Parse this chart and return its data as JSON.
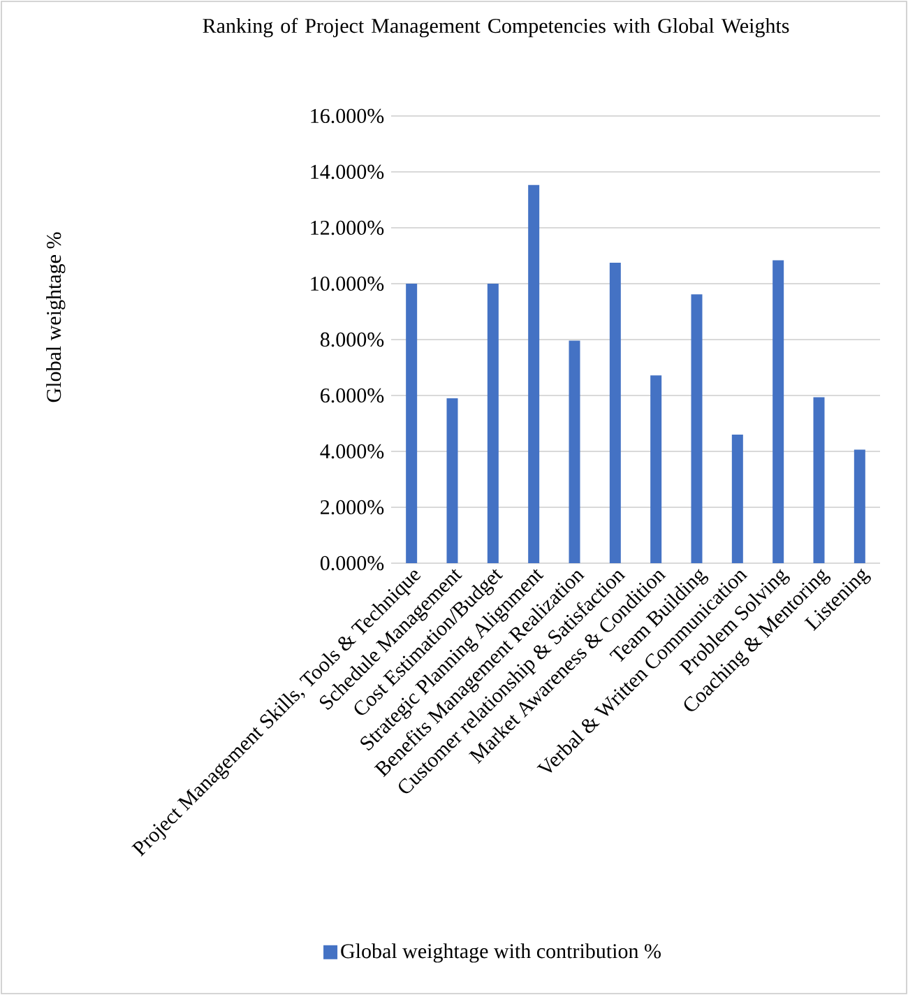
{
  "chart_data": {
    "type": "bar",
    "title": "Ranking of Project Management Competencies with Global Weights",
    "ylabel": "Global weightage  %",
    "categories": [
      "Project Management Skills, Tools & Technique",
      "Schedule Management",
      "Cost Estimation/Budget",
      "Strategic Planning Alignment",
      "Benefits Management Realization",
      "Customer relationship &  Satisfaction",
      "Market Awareness & Condition",
      "Team Building",
      "Verbal & Written Communication",
      "Problem Solving",
      "Coaching & Mentoring",
      "Listening"
    ],
    "series": [
      {
        "name": "Global weightage  with contribution %",
        "color": "#4472c4",
        "values": [
          10.0,
          5.9,
          10.0,
          13.53,
          7.96,
          10.75,
          6.72,
          9.62,
          4.6,
          10.84,
          5.94,
          4.06
        ]
      }
    ],
    "ylim": [
      0,
      16
    ],
    "yticks": [
      {
        "value": 0,
        "label": "0.000%"
      },
      {
        "value": 2,
        "label": "2.000%"
      },
      {
        "value": 4,
        "label": "4.000%"
      },
      {
        "value": 6,
        "label": "6.000%"
      },
      {
        "value": 8,
        "label": "8.000%"
      },
      {
        "value": 10,
        "label": "10.000%"
      },
      {
        "value": 12,
        "label": "12.000%"
      },
      {
        "value": 14,
        "label": "14.000%"
      },
      {
        "value": 16,
        "label": "16.000%"
      }
    ],
    "grid": "y",
    "legend": "bottom"
  }
}
